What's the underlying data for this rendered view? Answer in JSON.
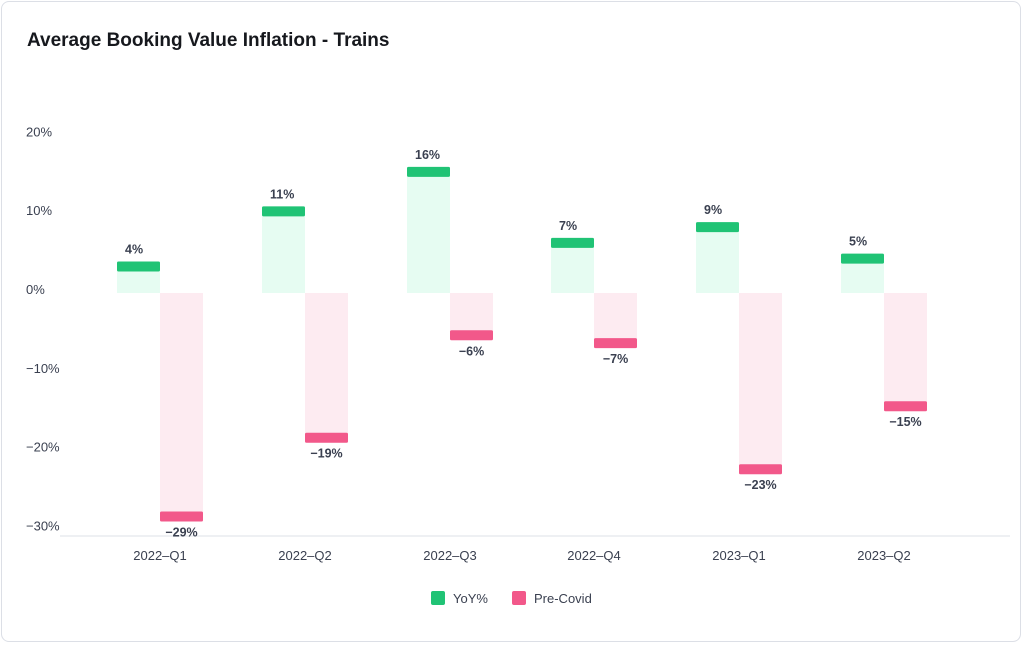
{
  "chart_data": {
    "type": "bar",
    "title": "Average Booking Value Inflation - Trains",
    "xlabel": "",
    "ylabel": "",
    "ylim": [
      -30,
      20
    ],
    "yticks": [
      20,
      10,
      0,
      -10,
      -20,
      -30
    ],
    "ytick_labels": [
      "20%",
      "10%",
      "0%",
      "−10%",
      "−20%",
      "−30%"
    ],
    "categories": [
      "2022–Q1",
      "2022–Q2",
      "2022–Q3",
      "2022–Q4",
      "2023–Q1",
      "2023–Q2"
    ],
    "series": [
      {
        "name": "YoY%",
        "values": [
          4,
          11,
          16,
          7,
          9,
          5
        ],
        "labels": [
          "4%",
          "11%",
          "16%",
          "7%",
          "9%",
          "5%"
        ],
        "color": "#20c375",
        "light": "#e6fcf2"
      },
      {
        "name": "Pre-Covid",
        "values": [
          -29,
          -19,
          -6,
          -7,
          -23,
          -15
        ],
        "labels": [
          "−29%",
          "−19%",
          "−6%",
          "−7%",
          "−23%",
          "−15%"
        ],
        "color": "#f2588a",
        "light": "#fdebf1"
      }
    ],
    "legend": "bottom-center",
    "grid": false
  }
}
